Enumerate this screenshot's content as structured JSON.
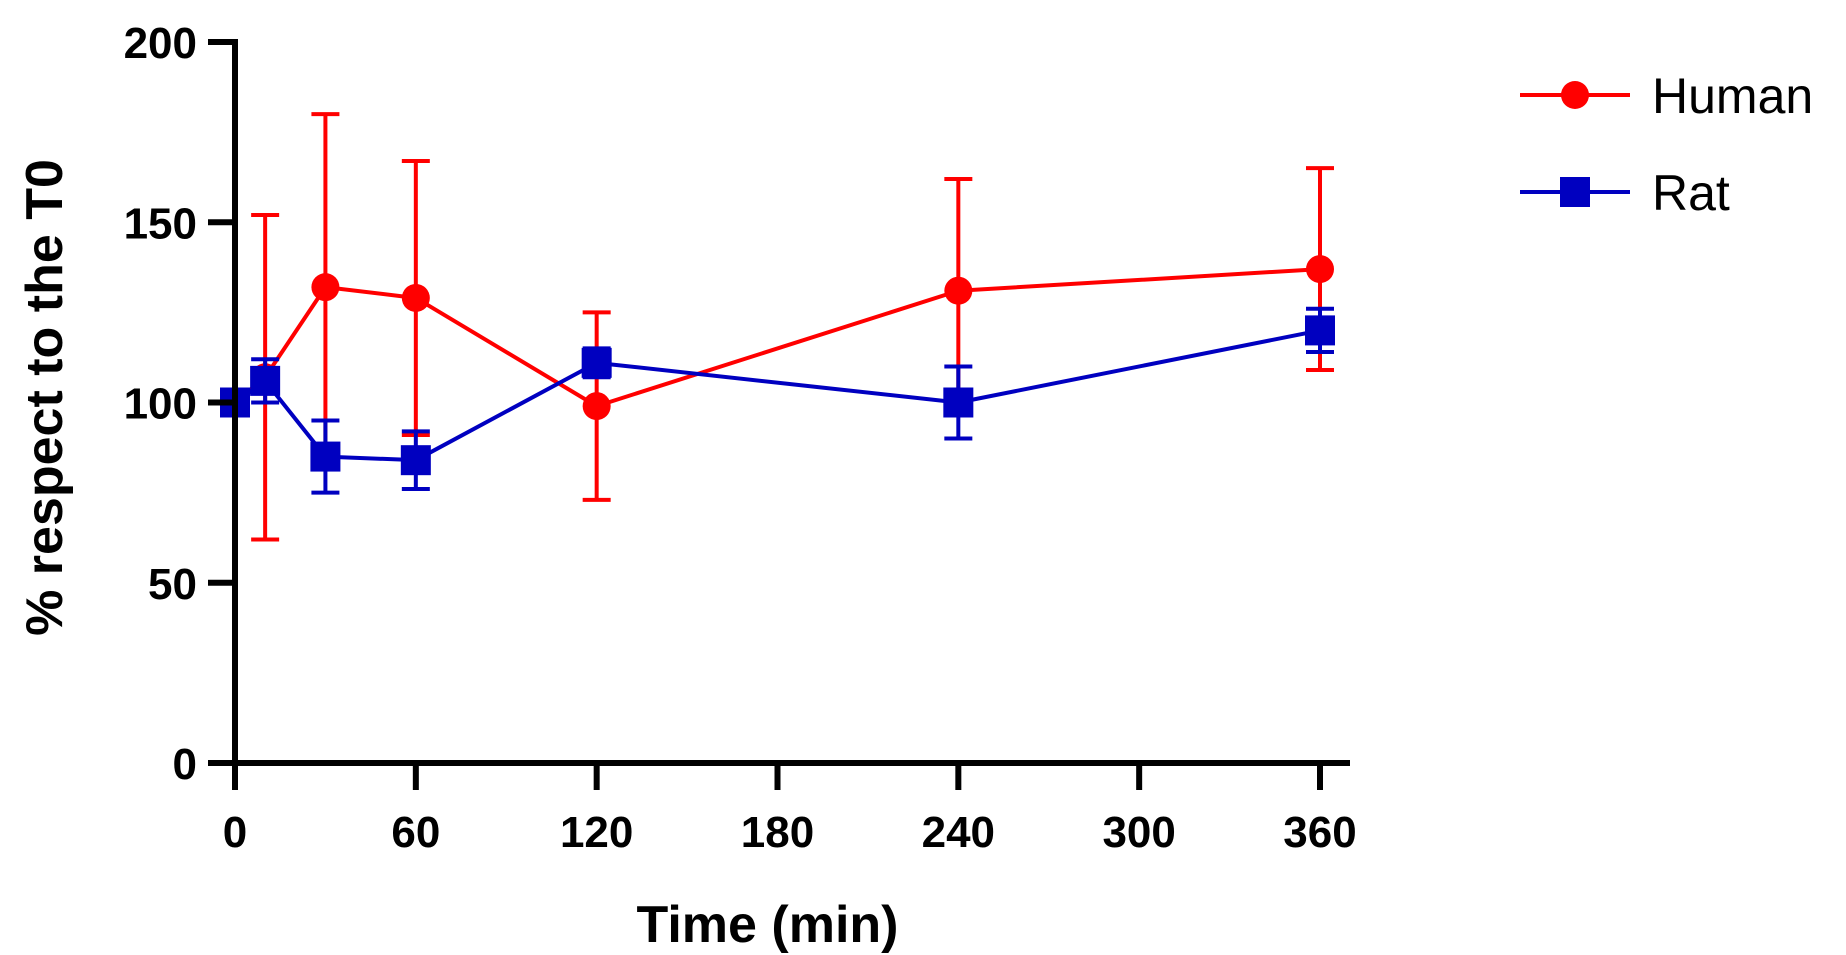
{
  "chart_data": {
    "type": "line",
    "title": "",
    "xlabel": "Time (min)",
    "ylabel": "% respect to the T0",
    "xlim": [
      0,
      360
    ],
    "ylim": [
      0,
      200
    ],
    "xticks": [
      0,
      60,
      120,
      180,
      240,
      300,
      360
    ],
    "xtick_labels": [
      "0",
      "60",
      "120",
      "180",
      "240",
      "300",
      "360"
    ],
    "yticks": [
      0,
      50,
      100,
      150,
      200
    ],
    "ytick_labels": [
      "0",
      "50",
      "100",
      "150",
      "200"
    ],
    "legend_position": "top-right, outside plot",
    "series": [
      {
        "name": "Human",
        "color": "#ff0000",
        "marker": "circle",
        "x": [
          0,
          10,
          30,
          60,
          120,
          240,
          360
        ],
        "values": [
          100,
          107,
          132,
          129,
          99,
          131,
          137
        ],
        "error": [
          0,
          45,
          48,
          38,
          26,
          31,
          28
        ]
      },
      {
        "name": "Rat",
        "color": "#0000c0",
        "marker": "square",
        "x": [
          0,
          10,
          30,
          60,
          120,
          240,
          360
        ],
        "values": [
          100,
          106,
          85,
          84,
          111,
          100,
          120
        ],
        "error": [
          0,
          6,
          10,
          8,
          4,
          10,
          6
        ]
      }
    ]
  }
}
